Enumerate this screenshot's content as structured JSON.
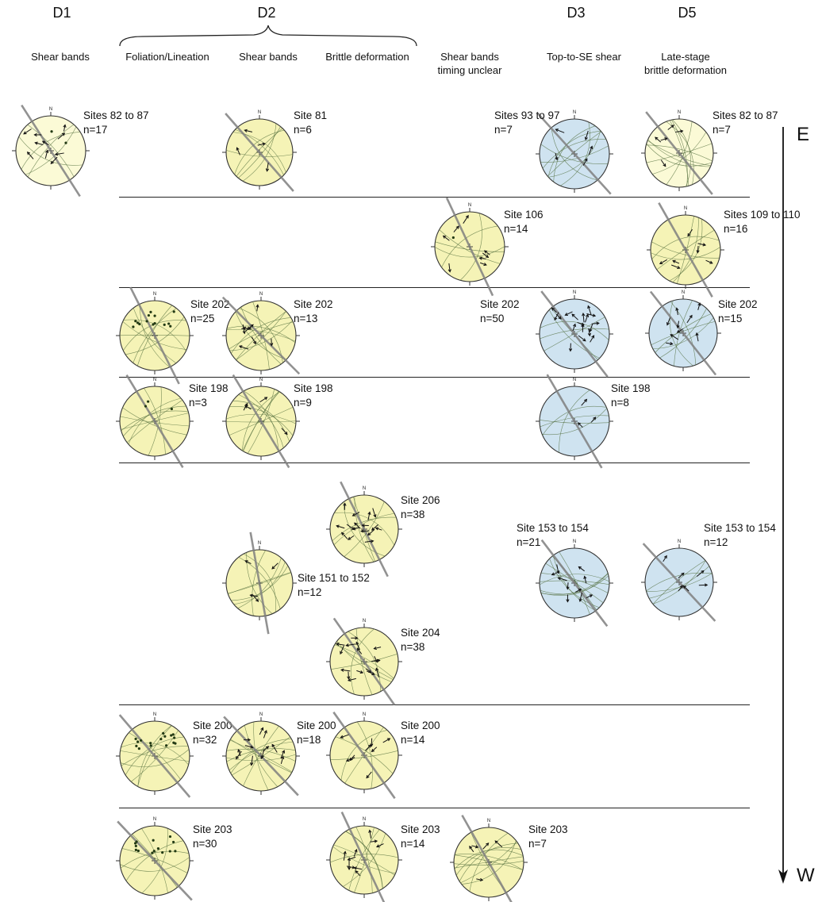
{
  "colors": {
    "yellow": "#f5f3b6",
    "pale_yellow": "#fbfad6",
    "blue": "#cfe3f0",
    "outline": "#333333",
    "trace": "#4f6b3a",
    "trend_line": "#7f7f7f",
    "arrow": "#111111"
  },
  "header": {
    "d1": "D1",
    "d2": "D2",
    "d3": "D3",
    "d5": "D5",
    "col_d1_shear": "Shear bands",
    "col_foliation": "Foliation/Lineation",
    "col_d2_shear": "Shear bands",
    "col_brittle": "Brittle deformation",
    "col_unclear_1": "Shear bands",
    "col_unclear_2": "timing unclear",
    "col_d3": "Top-to-SE shear",
    "col_d5_1": "Late-stage",
    "col_d5_2": "brittle deformation"
  },
  "axis": {
    "east": "E",
    "west": "W"
  },
  "north": "N",
  "nets": [
    {
      "site": "Sites 82 to 87",
      "n": "n=17",
      "color": "pale_yellow",
      "arrows": 10,
      "dots": 2
    },
    {
      "site": "Site 81",
      "n": "n=6",
      "color": "yellow",
      "arrows": 4,
      "dots": 0
    },
    {
      "site": "Sites 93 to 97",
      "n": "n=7",
      "color": "blue",
      "arrows": 5,
      "dots": 0
    },
    {
      "site": "Sites 82 to 87",
      "n": "n=7",
      "color": "pale_yellow",
      "arrows": 5,
      "dots": 0
    },
    {
      "site": "Site 106",
      "n": "n=14",
      "color": "yellow",
      "arrows": 8,
      "dots": 1
    },
    {
      "site": "Sites 109 to 110",
      "n": "n=16",
      "color": "yellow",
      "arrows": 7,
      "dots": 0
    },
    {
      "site": "Site 202",
      "n": "n=25",
      "color": "yellow",
      "arrows": 0,
      "dots": 14
    },
    {
      "site": "Site 202",
      "n": "n=13",
      "color": "yellow",
      "arrows": 8,
      "dots": 0
    },
    {
      "site": "Site 202",
      "n": "n=50",
      "color": "blue",
      "arrows": 18,
      "dots": 0
    },
    {
      "site": "Site 202",
      "n": "n=15",
      "color": "blue",
      "arrows": 9,
      "dots": 0
    },
    {
      "site": "Site 198",
      "n": "n=3",
      "color": "yellow",
      "arrows": 0,
      "dots": 3
    },
    {
      "site": "Site 198",
      "n": "n=9",
      "color": "yellow",
      "arrows": 4,
      "dots": 0
    },
    {
      "site": "Site 198",
      "n": "n=8",
      "color": "blue",
      "arrows": 3,
      "dots": 0
    },
    {
      "site": "Site 206",
      "n": "n=38",
      "color": "yellow",
      "arrows": 16,
      "dots": 0
    },
    {
      "site": "Site 151 to 152",
      "n": "n=12",
      "color": "yellow",
      "arrows": 4,
      "dots": 0
    },
    {
      "site": "Site 153 to 154",
      "n": "n=21",
      "color": "blue",
      "arrows": 10,
      "dots": 0
    },
    {
      "site": "Site 153 to 154",
      "n": "n=12",
      "color": "blue",
      "arrows": 6,
      "dots": 0
    },
    {
      "site": "Site 204",
      "n": "n=38",
      "color": "yellow",
      "arrows": 16,
      "dots": 0
    },
    {
      "site": "Site 200",
      "n": "n=32",
      "color": "yellow",
      "arrows": 0,
      "dots": 16
    },
    {
      "site": "Site 200",
      "n": "n=18",
      "color": "yellow",
      "arrows": 12,
      "dots": 0
    },
    {
      "site": "Site 200",
      "n": "n=14",
      "color": "yellow",
      "arrows": 8,
      "dots": 0
    },
    {
      "site": "Site 203",
      "n": "n=30",
      "color": "yellow",
      "arrows": 0,
      "dots": 14
    },
    {
      "site": "Site 203",
      "n": "n=14",
      "color": "yellow",
      "arrows": 10,
      "dots": 0
    },
    {
      "site": "Site 203",
      "n": "n=7",
      "color": "yellow",
      "arrows": 5,
      "dots": 0
    }
  ]
}
